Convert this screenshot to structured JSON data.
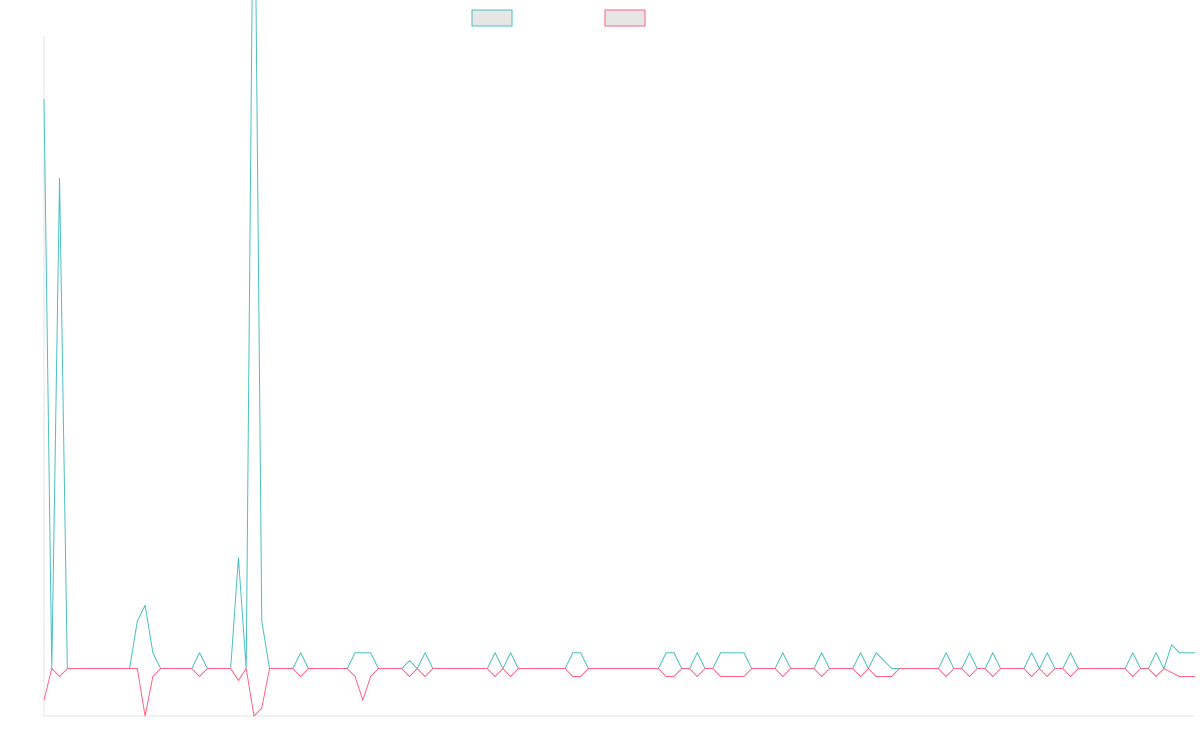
{
  "chart_data": {
    "type": "line",
    "title": "",
    "xlabel": "",
    "ylabel": "",
    "legend_position": "top-center",
    "grid": false,
    "series": [
      {
        "color": "#4bc0c0",
        "fill": "#e6e6e6",
        "values": [
          36,
          0,
          31,
          0,
          0,
          0,
          0,
          0,
          0,
          0,
          0,
          0,
          3,
          4,
          1,
          0,
          0,
          0,
          0,
          0,
          1,
          0,
          0,
          0,
          0,
          7,
          0,
          56,
          3,
          0,
          0,
          0,
          0,
          1,
          0,
          0,
          0,
          0,
          0,
          0,
          1,
          1,
          1,
          0,
          0,
          0,
          0,
          0.5,
          0,
          1,
          0,
          0,
          0,
          0,
          0,
          0,
          0,
          0,
          1,
          0,
          1,
          0,
          0,
          0,
          0,
          0,
          0,
          0,
          1,
          1,
          0,
          0,
          0,
          0,
          0,
          0,
          0,
          0,
          0,
          0,
          1,
          1,
          0,
          0,
          1,
          0,
          0,
          1,
          1,
          1,
          1,
          0,
          0,
          0,
          0,
          1,
          0,
          0,
          0,
          0,
          1,
          0,
          0,
          0,
          0,
          1,
          0,
          1,
          0.5,
          0,
          0,
          0,
          0,
          0,
          0,
          0,
          1,
          0,
          0,
          1,
          0,
          0,
          1,
          0,
          0,
          0,
          0,
          1,
          0,
          1,
          0,
          0,
          1,
          0,
          0,
          0,
          0,
          0,
          0,
          0,
          1,
          0,
          0,
          1,
          0,
          1.5,
          1,
          1,
          1
        ]
      },
      {
        "color": "#ff6384",
        "fill": "#e6e6e6",
        "values": [
          -2,
          0,
          -0.5,
          0,
          0,
          0,
          0,
          0,
          0,
          0,
          0,
          0,
          0,
          -3,
          -0.5,
          0,
          0,
          0,
          0,
          0,
          -0.5,
          0,
          0,
          0,
          0,
          -0.75,
          0,
          -3,
          -2.5,
          0,
          0,
          0,
          0,
          -0.5,
          0,
          0,
          0,
          0,
          0,
          0,
          -0.5,
          -2,
          -0.5,
          0,
          0,
          0,
          0,
          -0.5,
          0,
          -0.5,
          0,
          0,
          0,
          0,
          0,
          0,
          0,
          0,
          -0.5,
          0,
          -0.5,
          0,
          0,
          0,
          0,
          0,
          0,
          0,
          -0.5,
          -0.5,
          0,
          0,
          0,
          0,
          0,
          0,
          0,
          0,
          0,
          0,
          -0.5,
          -0.5,
          0,
          0,
          -0.5,
          0,
          0,
          -0.5,
          -0.5,
          -0.5,
          -0.5,
          0,
          0,
          0,
          0,
          -0.5,
          0,
          0,
          0,
          0,
          -0.5,
          0,
          0,
          0,
          0,
          -0.5,
          0,
          -0.5,
          -0.5,
          -0.5,
          0,
          0,
          0,
          0,
          0,
          0,
          -0.5,
          0,
          0,
          -0.5,
          0,
          0,
          -0.5,
          0,
          0,
          0,
          0,
          -0.5,
          0,
          -0.5,
          0,
          0,
          -0.5,
          0,
          0,
          0,
          0,
          0,
          0,
          0,
          -0.5,
          0,
          0,
          -0.5,
          0,
          -0.25,
          -0.5,
          -0.5,
          -0.5
        ]
      }
    ],
    "ylim": [
      -3,
      40
    ]
  }
}
